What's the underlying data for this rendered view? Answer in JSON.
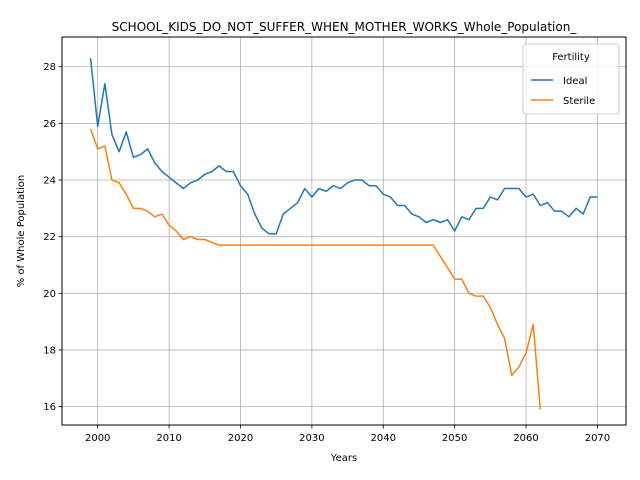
{
  "chart_data": {
    "type": "line",
    "title": "SCHOOL_KIDS_DO_NOT_SUFFER_WHEN_MOTHER_WORKS_Whole_Population_",
    "xlabel": "Years",
    "ylabel": "% of Whole Population",
    "xlim": [
      1995,
      2074
    ],
    "ylim": [
      15.35,
      29.05
    ],
    "xticks": [
      2000,
      2010,
      2020,
      2030,
      2040,
      2050,
      2060,
      2070
    ],
    "yticks": [
      16,
      18,
      20,
      22,
      24,
      26,
      28
    ],
    "grid": true,
    "legend": {
      "title": "Fertility",
      "placement": "top-right"
    },
    "series": [
      {
        "name": "Ideal",
        "color": "#1f77b4",
        "x": [
          1999,
          2000,
          2001,
          2002,
          2003,
          2004,
          2005,
          2006,
          2007,
          2008,
          2009,
          2010,
          2011,
          2012,
          2013,
          2014,
          2015,
          2016,
          2017,
          2018,
          2019,
          2020,
          2021,
          2022,
          2023,
          2024,
          2025,
          2026,
          2027,
          2028,
          2029,
          2030,
          2031,
          2032,
          2033,
          2034,
          2035,
          2036,
          2037,
          2038,
          2039,
          2040,
          2041,
          2042,
          2043,
          2044,
          2045,
          2046,
          2047,
          2048,
          2049,
          2050,
          2051,
          2052,
          2053,
          2054,
          2055,
          2056,
          2057,
          2058,
          2059,
          2060,
          2061,
          2062,
          2063,
          2064,
          2065,
          2066,
          2067,
          2068,
          2069,
          2070
        ],
        "values": [
          28.3,
          25.9,
          27.4,
          25.6,
          25.0,
          25.7,
          24.8,
          24.9,
          25.1,
          24.6,
          24.3,
          24.1,
          23.9,
          23.7,
          23.9,
          24.0,
          24.2,
          24.3,
          24.5,
          24.3,
          24.3,
          23.8,
          23.5,
          22.8,
          22.3,
          22.1,
          22.1,
          22.8,
          23.0,
          23.2,
          23.7,
          23.4,
          23.7,
          23.6,
          23.8,
          23.7,
          23.9,
          24.0,
          24.0,
          23.8,
          23.8,
          23.5,
          23.4,
          23.1,
          23.1,
          22.8,
          22.7,
          22.5,
          22.6,
          22.5,
          22.6,
          22.2,
          22.7,
          22.6,
          23.0,
          23.0,
          23.4,
          23.3,
          23.7,
          23.7,
          23.7,
          23.4,
          23.5,
          23.1,
          23.2,
          22.9,
          22.9,
          22.7,
          23.0,
          22.8,
          23.4,
          23.4
        ]
      },
      {
        "name": "Sterile",
        "color": "#ff7f0e",
        "x": [
          1999,
          2000,
          2001,
          2002,
          2003,
          2004,
          2005,
          2006,
          2007,
          2008,
          2009,
          2010,
          2011,
          2012,
          2013,
          2014,
          2015,
          2016,
          2017,
          2018,
          2019,
          2020,
          2021,
          2022,
          2023,
          2024,
          2025,
          2026,
          2027,
          2028,
          2029,
          2030,
          2031,
          2032,
          2033,
          2034,
          2035,
          2036,
          2037,
          2038,
          2039,
          2040,
          2041,
          2042,
          2043,
          2044,
          2045,
          2046,
          2047,
          2048,
          2049,
          2050,
          2051,
          2052,
          2053,
          2054,
          2055,
          2056,
          2057,
          2058,
          2059,
          2060,
          2061,
          2062
        ],
        "values": [
          25.8,
          25.1,
          25.2,
          24.0,
          23.9,
          23.5,
          23.0,
          23.0,
          22.9,
          22.7,
          22.8,
          22.4,
          22.2,
          21.9,
          22.0,
          21.9,
          21.9,
          21.8,
          21.7,
          21.7,
          21.7,
          21.7,
          21.7,
          21.7,
          21.7,
          21.7,
          21.7,
          21.7,
          21.7,
          21.7,
          21.7,
          21.7,
          21.7,
          21.7,
          21.7,
          21.7,
          21.7,
          21.7,
          21.7,
          21.7,
          21.7,
          21.7,
          21.7,
          21.7,
          21.7,
          21.7,
          21.7,
          21.7,
          21.7,
          21.3,
          20.9,
          20.5,
          20.5,
          20.0,
          19.9,
          19.9,
          19.5,
          18.9,
          18.4,
          17.1,
          17.4,
          17.9,
          18.9,
          15.9
        ]
      }
    ]
  }
}
